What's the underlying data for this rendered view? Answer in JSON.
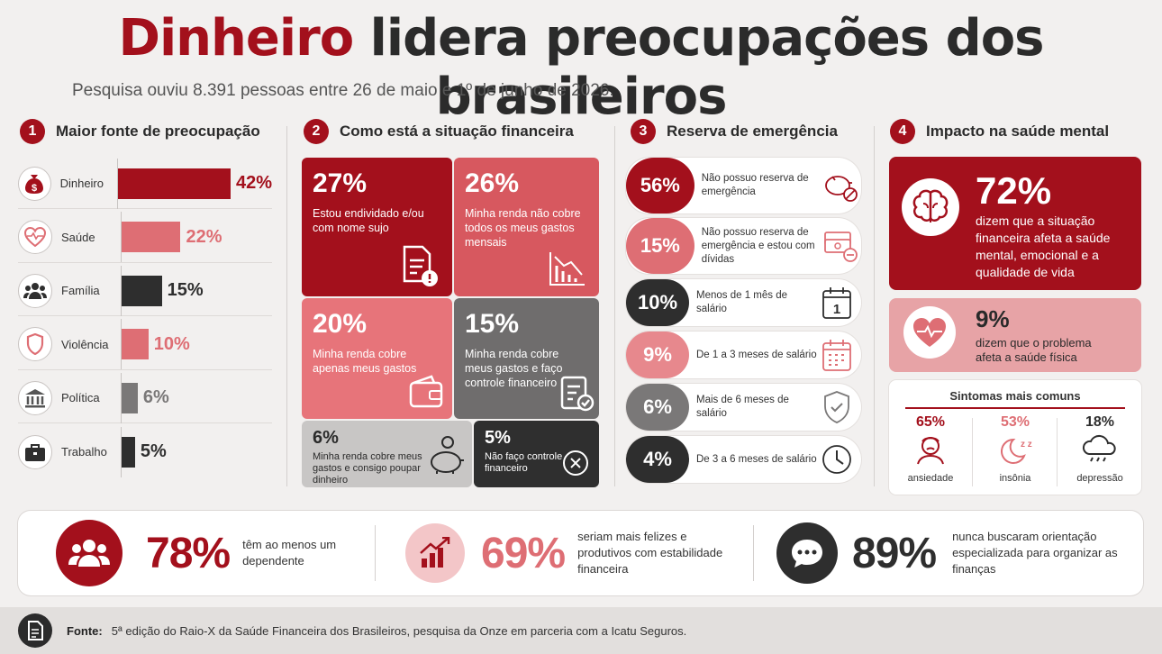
{
  "title": {
    "highlight": "Dinheiro",
    "rest": "lidera preocupações dos brasileiros"
  },
  "subtitle": "Pesquisa ouviu 8.391 pessoas entre 26 de maio e 1º de junho de 2026.",
  "colors": {
    "red": "#a3101c",
    "pink": "#de6e74",
    "dark": "#2e2e2e",
    "grey": "#7a7878",
    "lightgrey": "#c8c6c5"
  },
  "sections": [
    {
      "num": "1",
      "title": "Maior fonte de preocupação"
    },
    {
      "num": "2",
      "title": "Como está a situação financeira"
    },
    {
      "num": "3",
      "title": "Reserva de emergência"
    },
    {
      "num": "4",
      "title": "Impacto na saúde mental"
    }
  ],
  "chart_data": [
    {
      "type": "bar",
      "categories": [
        "Dinheiro",
        "Saúde",
        "Família",
        "Violência",
        "Política",
        "Trabalho"
      ],
      "values": [
        42,
        22,
        15,
        10,
        6,
        5
      ],
      "value_labels": [
        "42%",
        "22%",
        "15%",
        "10%",
        "6%",
        "5%"
      ],
      "icons": [
        "money-bag-icon",
        "heart-pulse-icon",
        "people-icon",
        "shield-icon",
        "bank-icon",
        "briefcase-icon"
      ]
    },
    {
      "type": "table",
      "items": [
        {
          "value": "27%",
          "text": "Estou endividado e/ou com nome sujo",
          "icon": "document-alert-icon"
        },
        {
          "value": "26%",
          "text": "Minha renda não cobre todos os meus gastos mensais",
          "icon": "chart-down-icon"
        },
        {
          "value": "20%",
          "text": "Minha renda cobre apenas meus gastos",
          "icon": "wallet-icon"
        },
        {
          "value": "15%",
          "text": "Minha renda cobre meus gastos e faço controle financeiro",
          "icon": "clipboard-check-icon"
        },
        {
          "value": "6%",
          "text": "Minha renda cobre meus gastos e consigo poupar dinheiro",
          "icon": "piggy-bank-icon"
        },
        {
          "value": "5%",
          "text": "Não faço controle financeiro",
          "icon": "x-circle-icon"
        }
      ]
    },
    {
      "type": "table",
      "items": [
        {
          "value": "56%",
          "text": "Não possuo reserva de emergência",
          "icon": "broken-piggy-icon"
        },
        {
          "value": "15%",
          "text": "Não possuo reserva de emergência e estou com dívidas",
          "icon": "money-minus-icon"
        },
        {
          "value": "10%",
          "text": "Menos de 1 mês de salário",
          "icon": "calendar-one-icon"
        },
        {
          "value": "9%",
          "text": "De 1 a 3 meses de salário",
          "icon": "calendar-icon"
        },
        {
          "value": "6%",
          "text": "Mais de 6 meses de salário",
          "icon": "shield-check-icon"
        },
        {
          "value": "4%",
          "text": "De 3 a 6 meses de salário",
          "icon": "clock-icon"
        }
      ]
    }
  ],
  "mental": {
    "main": {
      "value": "72%",
      "text": "dizem que a situação financeira afeta a saúde mental, emocional e a qualidade de vida"
    },
    "physical": {
      "value": "9%",
      "text": "dizem que o problema afeta a saúde física"
    },
    "symptoms_title": "Sintomas mais comuns",
    "symptoms": [
      {
        "value": "65%",
        "label": "ansiedade"
      },
      {
        "value": "53%",
        "label": "insônia"
      },
      {
        "value": "18%",
        "label": "depressão"
      }
    ]
  },
  "stats": [
    {
      "value": "78%",
      "text": "têm ao menos um dependente"
    },
    {
      "value": "69%",
      "text": "seriam mais felizes e produtivos com estabilidade financeira"
    },
    {
      "value": "89%",
      "text": "nunca buscaram orientação especializada para organizar as finanças"
    }
  ],
  "footer": {
    "label": "Fonte:",
    "text": "5ª edição do Raio-X da Saúde Financeira dos Brasileiros, pesquisa da Onze em parceria com a Icatu Seguros."
  }
}
